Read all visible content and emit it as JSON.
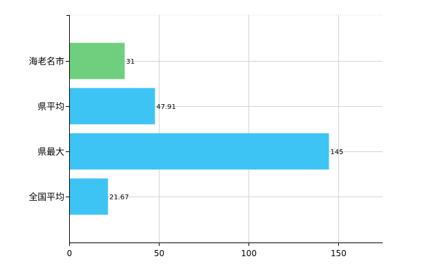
{
  "chart_data": {
    "type": "bar",
    "orientation": "horizontal",
    "categories": [
      "海老名市",
      "県平均",
      "県最大",
      "全国平均"
    ],
    "values": [
      31,
      47.91,
      145,
      21.67
    ],
    "value_labels": [
      "31",
      "47.91",
      "145",
      "21.67"
    ],
    "xlim": [
      0,
      175
    ],
    "xticks": [
      0,
      50,
      100,
      150
    ],
    "xtick_labels": [
      "0",
      "50",
      "100",
      "150"
    ],
    "grid": true,
    "colors": {
      "highlight": "#6fcf7e",
      "default": "#3ec3f5",
      "grid": "#d3d3d3",
      "axis": "#000000"
    },
    "highlight_index": 0
  }
}
